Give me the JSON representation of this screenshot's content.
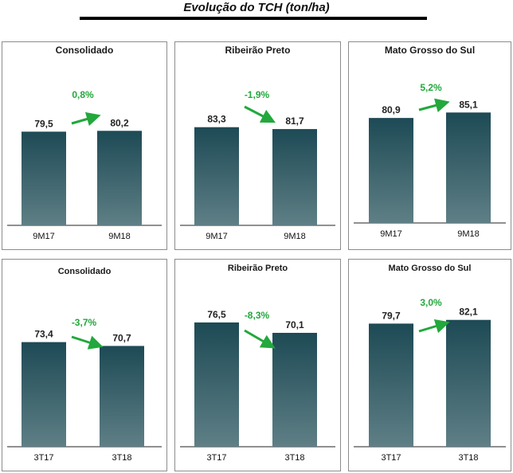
{
  "title": "Evolução do TCH (ton/ha)",
  "colors": {
    "bar_top": "#1d4a55",
    "bar_bottom": "#5f7f86",
    "arrow": "#22a83c",
    "pct_text": "#22a83c"
  },
  "chart_data": [
    {
      "type": "bar",
      "title": "Consolidado",
      "categories": [
        "9M17",
        "9M18"
      ],
      "values": [
        79.5,
        80.2
      ],
      "value_labels": [
        "79,5",
        "80,2"
      ],
      "change_label": "0,8%",
      "ylim": [
        0,
        100
      ]
    },
    {
      "type": "bar",
      "title": "Ribeirão Preto",
      "categories": [
        "9M17",
        "9M18"
      ],
      "values": [
        83.3,
        81.7
      ],
      "value_labels": [
        "83,3",
        "81,7"
      ],
      "change_label": "-1,9%",
      "ylim": [
        0,
        100
      ]
    },
    {
      "type": "bar",
      "title": "Mato Grosso do Sul",
      "categories": [
        "9M17",
        "9M18"
      ],
      "values": [
        80.9,
        85.1
      ],
      "value_labels": [
        "80,9",
        "85,1"
      ],
      "change_label": "5,2%",
      "ylim": [
        0,
        100
      ]
    },
    {
      "type": "bar",
      "title": "Consolidado",
      "categories": [
        "3T17",
        "3T18"
      ],
      "values": [
        73.4,
        70.7
      ],
      "value_labels": [
        "73,4",
        "70,7"
      ],
      "change_label": "-3,7%",
      "ylim": [
        0,
        100
      ]
    },
    {
      "type": "bar",
      "title": "Ribeirão Preto",
      "categories": [
        "3T17",
        "3T18"
      ],
      "values": [
        76.5,
        70.1
      ],
      "value_labels": [
        "76,5",
        "70,1"
      ],
      "change_label": "-8,3%",
      "ylim": [
        0,
        100
      ]
    },
    {
      "type": "bar",
      "title": "Mato Grosso do Sul",
      "categories": [
        "3T17",
        "3T18"
      ],
      "values": [
        79.7,
        82.1
      ],
      "value_labels": [
        "79,7",
        "82,1"
      ],
      "change_label": "3,0%",
      "ylim": [
        0,
        100
      ]
    }
  ]
}
